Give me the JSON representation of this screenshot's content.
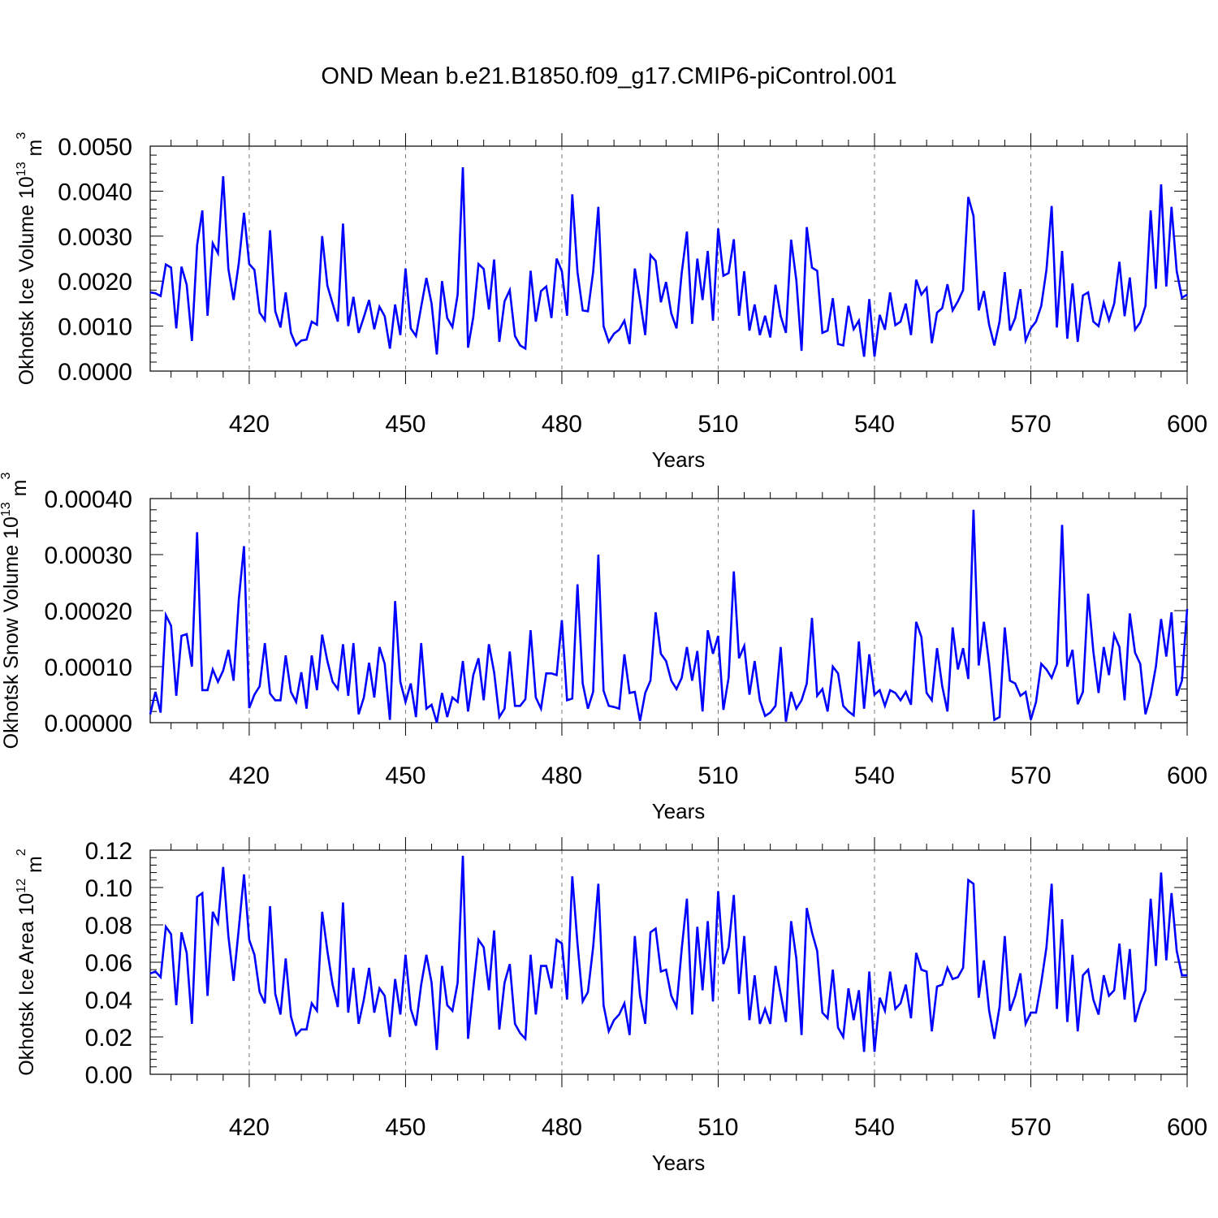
{
  "title": "OND Mean b.e21.B1850.f09_g17.CMIP6-piControl.001",
  "line_color": "#0000ff",
  "chart_data": [
    {
      "type": "line",
      "ylabel": "Okhotsk Ice Volume 10",
      "ylabel_exp": "13",
      "ylabel_unit": " m",
      "ylabel_unit_exp": "3",
      "xlabel": "Years",
      "xlim": [
        401,
        600
      ],
      "ylim": [
        0,
        0.005
      ],
      "xticks": [
        420,
        450,
        480,
        510,
        540,
        570,
        600
      ],
      "xtick_labels": [
        "420",
        "450",
        "480",
        "510",
        "540",
        "570",
        "600"
      ],
      "yticks": [
        0,
        0.001,
        0.002,
        0.003,
        0.004,
        0.005
      ],
      "ytick_labels": [
        "0.0000",
        "0.0010",
        "0.0020",
        "0.0030",
        "0.0040",
        "0.0050"
      ],
      "grid": "vertical dashed at major x ticks",
      "series": [
        {
          "x_start": 401,
          "values": [
            0.00175,
            0.00173,
            0.00167,
            0.00237,
            0.0023,
            0.00095,
            0.00232,
            0.00192,
            0.00067,
            0.0028,
            0.00357,
            0.00123,
            0.00284,
            0.00262,
            0.00433,
            0.00227,
            0.00158,
            0.0024,
            0.00352,
            0.00238,
            0.00225,
            0.0013,
            0.00113,
            0.00313,
            0.00133,
            0.00097,
            0.00175,
            0.00085,
            0.00057,
            0.00068,
            0.0007,
            0.0011,
            0.00103,
            0.003,
            0.0019,
            0.0015,
            0.0011,
            0.00328,
            0.001,
            0.00165,
            0.00085,
            0.0012,
            0.00158,
            0.00093,
            0.00143,
            0.00122,
            0.0005,
            0.00148,
            0.0008,
            0.00228,
            0.00095,
            0.00078,
            0.00143,
            0.00207,
            0.0015,
            0.00037,
            0.002,
            0.00118,
            0.00098,
            0.0017,
            0.00453,
            0.00052,
            0.0012,
            0.00238,
            0.00227,
            0.00137,
            0.00248,
            0.00065,
            0.00155,
            0.0018,
            0.00078,
            0.00057,
            0.0005,
            0.00223,
            0.0011,
            0.00178,
            0.00188,
            0.00118,
            0.0025,
            0.00222,
            0.00123,
            0.00393,
            0.0022,
            0.00135,
            0.00133,
            0.0022,
            0.00365,
            0.001,
            0.00065,
            0.00083,
            0.00092,
            0.00112,
            0.0006,
            0.00228,
            0.00158,
            0.0008,
            0.00258,
            0.00245,
            0.00153,
            0.00198,
            0.00128,
            0.00095,
            0.00218,
            0.0031,
            0.00105,
            0.0025,
            0.00158,
            0.00267,
            0.00112,
            0.00317,
            0.00212,
            0.00218,
            0.00293,
            0.00123,
            0.00222,
            0.0009,
            0.00148,
            0.0008,
            0.00123,
            0.00075,
            0.00192,
            0.00122,
            0.00085,
            0.00292,
            0.00202,
            0.00045,
            0.0032,
            0.0023,
            0.00223,
            0.00085,
            0.0009,
            0.00162,
            0.0006,
            0.00057,
            0.00145,
            0.00093,
            0.00112,
            0.00032,
            0.0016,
            0.00032,
            0.00125,
            0.00092,
            0.00175,
            0.00102,
            0.0011,
            0.0015,
            0.0008,
            0.00203,
            0.0017,
            0.00185,
            0.00062,
            0.0013,
            0.0014,
            0.00193,
            0.00135,
            0.00155,
            0.0018,
            0.00387,
            0.00345,
            0.00135,
            0.00178,
            0.00103,
            0.00057,
            0.0011,
            0.0022,
            0.0009,
            0.00118,
            0.00182,
            0.00068,
            0.00095,
            0.0011,
            0.00145,
            0.00225,
            0.00367,
            0.00097,
            0.00267,
            0.00072,
            0.00195,
            0.00065,
            0.00168,
            0.00175,
            0.0011,
            0.001,
            0.00152,
            0.00113,
            0.0015,
            0.00243,
            0.00122,
            0.00208,
            0.00092,
            0.00108,
            0.00145,
            0.00357,
            0.00183,
            0.00415,
            0.00188,
            0.00365,
            0.00222,
            0.00163,
            0.0017
          ]
        }
      ]
    },
    {
      "type": "line",
      "ylabel": "Okhotsk Snow Volume 10",
      "ylabel_exp": "13",
      "ylabel_unit": " m",
      "ylabel_unit_exp": "3",
      "xlabel": "Years",
      "xlim": [
        401,
        600
      ],
      "ylim": [
        0,
        0.0004
      ],
      "xticks": [
        420,
        450,
        480,
        510,
        540,
        570,
        600
      ],
      "xtick_labels": [
        "420",
        "450",
        "480",
        "510",
        "540",
        "570",
        "600"
      ],
      "yticks": [
        0,
        0.0001,
        0.0002,
        0.0003,
        0.0004
      ],
      "ytick_labels": [
        "0.00000",
        "0.00010",
        "0.00020",
        "0.00030",
        "0.00040"
      ],
      "grid": "vertical dashed at major x ticks",
      "series": [
        {
          "x_start": 401,
          "values": [
            1.5e-05,
            5.5e-05,
            1.8e-05,
            0.000192,
            0.000173,
            4.8e-05,
            0.000155,
            0.000158,
            0.0001,
            0.00034,
            5.8e-05,
            5.8e-05,
            9.5e-05,
            7.3e-05,
            9.3e-05,
            0.00013,
            7.5e-05,
            0.00022,
            0.000315,
            2.6e-05,
            5e-05,
            6.5e-05,
            0.000142,
            5.2e-05,
            4e-05,
            4e-05,
            0.00012,
            5.5e-05,
            3.7e-05,
            9e-05,
            2.5e-05,
            0.00012,
            5.8e-05,
            0.000157,
            0.00011,
            7.3e-05,
            6e-05,
            0.00014,
            4.8e-05,
            0.000142,
            1.5e-05,
            4.5e-05,
            0.000107,
            4.5e-05,
            0.000135,
            0.000105,
            5e-06,
            0.000217,
            7.3e-05,
            3.7e-05,
            7e-05,
            1e-05,
            0.000142,
            2.5e-05,
            3.2e-05,
            0.0,
            5.3e-05,
            1e-05,
            4.5e-05,
            3.7e-05,
            0.00011,
            2e-05,
            8.5e-05,
            0.000115,
            4e-05,
            0.00014,
            9e-05,
            1e-05,
            2.5e-05,
            0.000127,
            3e-05,
            3e-05,
            4.2e-05,
            0.000165,
            4.5e-05,
            2.5e-05,
            8.8e-05,
            8.8e-05,
            8.5e-05,
            0.000183,
            4e-05,
            4.3e-05,
            0.000247,
            7e-05,
            2.5e-05,
            5.5e-05,
            0.0003,
            5.7e-05,
            3e-05,
            2.8e-05,
            2.5e-05,
            0.000122,
            5.3e-05,
            5.5e-05,
            3e-06,
            5.3e-05,
            7.5e-05,
            0.000197,
            0.000123,
            0.00011,
            7.5e-05,
            6e-05,
            8e-05,
            0.000135,
            7.5e-05,
            0.000128,
            2e-05,
            0.000165,
            0.000123,
            0.000155,
            2.3e-05,
            8e-05,
            0.00027,
            0.000115,
            0.000137,
            5e-05,
            0.00011,
            4e-05,
            1.2e-05,
            1.8e-05,
            3e-05,
            0.000135,
            2e-06,
            5.5e-05,
            2.5e-05,
            4e-05,
            7e-05,
            0.000187,
            4.8e-05,
            6e-05,
            2e-05,
            0.0001,
            8.8e-05,
            3e-05,
            2e-05,
            1.3e-05,
            0.000145,
            2.5e-05,
            0.000122,
            5e-05,
            5.8e-05,
            3e-05,
            5.8e-05,
            5.3e-05,
            4e-05,
            5.5e-05,
            3.2e-05,
            0.00018,
            0.000153,
            5.3e-05,
            4e-05,
            0.000133,
            6.5e-05,
            2e-05,
            0.00017,
            9.5e-05,
            0.000133,
            7.8e-05,
            0.00038,
            0.000102,
            0.00018,
            0.000105,
            5e-06,
            1e-05,
            0.00017,
            7.5e-05,
            7e-05,
            4.8e-05,
            5.5e-05,
            5e-06,
            3.7e-05,
            0.000105,
            9.5e-05,
            8e-05,
            0.000105,
            0.000353,
            0.0001,
            0.00013,
            3.3e-05,
            5.5e-05,
            0.00023,
            0.000127,
            5.3e-05,
            0.000135,
            8.5e-05,
            0.000157,
            0.000135,
            4e-05,
            0.000195,
            0.000125,
            0.000105,
            1.5e-05,
            4.8e-05,
            0.0001,
            0.000185,
            0.000118,
            0.000197,
            4.8e-05,
            7.5e-05,
            0.000203
          ]
        }
      ]
    },
    {
      "type": "line",
      "ylabel": "Okhotsk Ice Area 10",
      "ylabel_exp": "12",
      "ylabel_unit": " m",
      "ylabel_unit_exp": "2",
      "xlabel": "Years",
      "xlim": [
        401,
        600
      ],
      "ylim": [
        0,
        0.12
      ],
      "xticks": [
        420,
        450,
        480,
        510,
        540,
        570,
        600
      ],
      "xtick_labels": [
        "420",
        "450",
        "480",
        "510",
        "540",
        "570",
        "600"
      ],
      "yticks": [
        0,
        0.02,
        0.04,
        0.06,
        0.08,
        0.1,
        0.12
      ],
      "ytick_labels": [
        "0.00",
        "0.02",
        "0.04",
        "0.06",
        "0.08",
        "0.10",
        "0.12"
      ],
      "grid": "vertical dashed at major x ticks",
      "series": [
        {
          "x_start": 401,
          "values": [
            0.054,
            0.055,
            0.052,
            0.079,
            0.075,
            0.037,
            0.076,
            0.065,
            0.027,
            0.095,
            0.097,
            0.042,
            0.087,
            0.081,
            0.111,
            0.074,
            0.05,
            0.078,
            0.107,
            0.072,
            0.064,
            0.044,
            0.038,
            0.09,
            0.043,
            0.032,
            0.062,
            0.031,
            0.021,
            0.024,
            0.024,
            0.038,
            0.034,
            0.087,
            0.066,
            0.048,
            0.036,
            0.092,
            0.033,
            0.057,
            0.027,
            0.04,
            0.057,
            0.033,
            0.046,
            0.042,
            0.02,
            0.051,
            0.032,
            0.064,
            0.035,
            0.026,
            0.048,
            0.064,
            0.049,
            0.013,
            0.058,
            0.037,
            0.034,
            0.049,
            0.117,
            0.019,
            0.046,
            0.072,
            0.068,
            0.045,
            0.077,
            0.024,
            0.049,
            0.059,
            0.027,
            0.022,
            0.019,
            0.064,
            0.032,
            0.058,
            0.058,
            0.046,
            0.072,
            0.07,
            0.04,
            0.106,
            0.07,
            0.039,
            0.044,
            0.068,
            0.102,
            0.037,
            0.023,
            0.029,
            0.032,
            0.038,
            0.021,
            0.074,
            0.042,
            0.027,
            0.076,
            0.078,
            0.055,
            0.056,
            0.042,
            0.036,
            0.067,
            0.094,
            0.032,
            0.079,
            0.045,
            0.082,
            0.039,
            0.098,
            0.059,
            0.068,
            0.096,
            0.043,
            0.074,
            0.029,
            0.053,
            0.027,
            0.035,
            0.027,
            0.058,
            0.043,
            0.028,
            0.082,
            0.062,
            0.021,
            0.089,
            0.076,
            0.066,
            0.033,
            0.03,
            0.056,
            0.025,
            0.02,
            0.046,
            0.029,
            0.045,
            0.012,
            0.055,
            0.012,
            0.041,
            0.034,
            0.055,
            0.035,
            0.038,
            0.048,
            0.03,
            0.065,
            0.056,
            0.055,
            0.023,
            0.047,
            0.048,
            0.057,
            0.051,
            0.052,
            0.057,
            0.104,
            0.102,
            0.041,
            0.061,
            0.034,
            0.019,
            0.036,
            0.074,
            0.034,
            0.042,
            0.054,
            0.027,
            0.033,
            0.033,
            0.049,
            0.068,
            0.102,
            0.035,
            0.083,
            0.028,
            0.064,
            0.023,
            0.053,
            0.056,
            0.04,
            0.032,
            0.053,
            0.042,
            0.045,
            0.07,
            0.04,
            0.067,
            0.028,
            0.038,
            0.045,
            0.094,
            0.058,
            0.108,
            0.061,
            0.097,
            0.066,
            0.053,
            0.053
          ]
        }
      ]
    }
  ]
}
